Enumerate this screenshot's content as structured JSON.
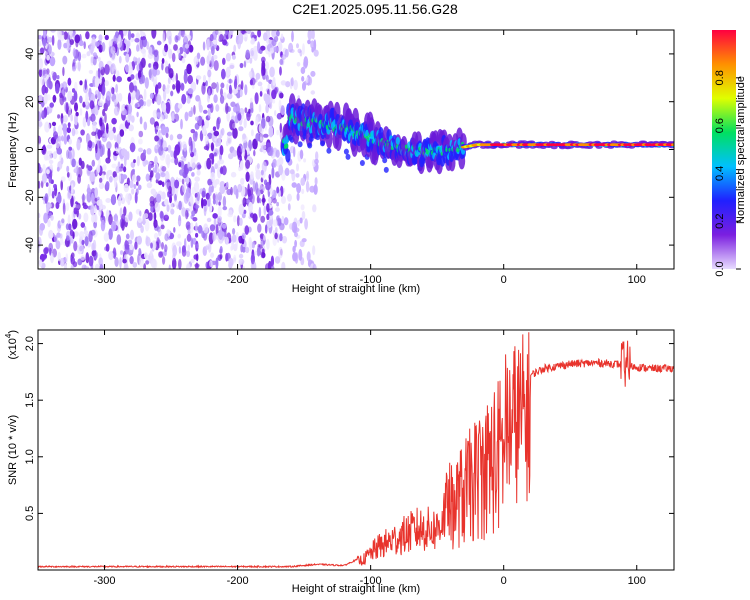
{
  "title": "C2E1.2025.095.11.56.G28",
  "chart_data": [
    {
      "type": "heatmap",
      "xlabel": "Height of straight line (km)",
      "ylabel": "Frequency (Hz)",
      "xlim": [
        -350,
        128
      ],
      "ylim": [
        -50,
        50
      ],
      "x_ticks": [
        -300,
        -200,
        -100,
        0,
        100
      ],
      "y_ticks": [
        -40,
        -20,
        0,
        20,
        40
      ],
      "colorbar": {
        "label": "Normalized spectral amplitude",
        "range": [
          0,
          1
        ],
        "ticks": [
          "0.0",
          "0.2",
          "0.4",
          "0.6",
          "0.8"
        ],
        "colors": [
          "#e8dcff",
          "#7b1fe0",
          "#2020ff",
          "#00c0ff",
          "#00e060",
          "#e0ff00",
          "#ff9000",
          "#ff0040"
        ]
      },
      "trace": [
        {
          "x": -162,
          "y": 13
        },
        {
          "x": -150,
          "y": 12
        },
        {
          "x": -140,
          "y": 11
        },
        {
          "x": -130,
          "y": 10
        },
        {
          "x": -120,
          "y": 9
        },
        {
          "x": -110,
          "y": 7
        },
        {
          "x": -100,
          "y": 5
        },
        {
          "x": -90,
          "y": 3
        },
        {
          "x": -80,
          "y": 1
        },
        {
          "x": -70,
          "y": 0
        },
        {
          "x": -60,
          "y": -1
        },
        {
          "x": -50,
          "y": -1
        },
        {
          "x": -40,
          "y": 0
        },
        {
          "x": -30,
          "y": 1
        },
        {
          "x": -20,
          "y": 2
        },
        {
          "x": -10,
          "y": 2
        },
        {
          "x": 0,
          "y": 2
        },
        {
          "x": 20,
          "y": 2
        },
        {
          "x": 40,
          "y": 2
        },
        {
          "x": 60,
          "y": 2
        },
        {
          "x": 80,
          "y": 2
        },
        {
          "x": 100,
          "y": 2
        },
        {
          "x": 128,
          "y": 2
        }
      ]
    },
    {
      "type": "line",
      "xlabel": "Height of straight line (km)",
      "ylabel": "SNR (10 * v/v)",
      "y_scale_label": "(x10",
      "y_scale_exp": "4",
      "xlim": [
        -350,
        128
      ],
      "ylim": [
        0,
        2.12
      ],
      "x_ticks": [
        -300,
        -200,
        -100,
        0,
        100
      ],
      "y_ticks": [
        "0.5",
        "1.0",
        "1.5",
        "2.0"
      ],
      "color": "#e8332c",
      "envelope": [
        {
          "x": -350,
          "y": 0.03
        },
        {
          "x": -160,
          "y": 0.03
        },
        {
          "x": -140,
          "y": 0.05
        },
        {
          "x": -120,
          "y": 0.04
        },
        {
          "x": -105,
          "y": 0.12
        },
        {
          "x": -95,
          "y": 0.25
        },
        {
          "x": -80,
          "y": 0.35
        },
        {
          "x": -65,
          "y": 0.45
        },
        {
          "x": -50,
          "y": 0.45
        },
        {
          "x": -40,
          "y": 0.8
        },
        {
          "x": -30,
          "y": 1.0
        },
        {
          "x": -20,
          "y": 1.2
        },
        {
          "x": -10,
          "y": 1.4
        },
        {
          "x": 0,
          "y": 1.55
        },
        {
          "x": 10,
          "y": 1.65
        },
        {
          "x": 20,
          "y": 1.72
        },
        {
          "x": 30,
          "y": 1.78
        },
        {
          "x": 50,
          "y": 1.82
        },
        {
          "x": 70,
          "y": 1.83
        },
        {
          "x": 85,
          "y": 1.82
        },
        {
          "x": 95,
          "y": 1.8
        },
        {
          "x": 110,
          "y": 1.78
        },
        {
          "x": 128,
          "y": 1.78
        }
      ]
    }
  ]
}
